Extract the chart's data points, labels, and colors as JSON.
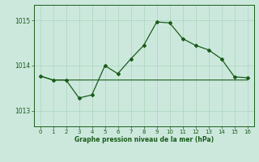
{
  "x": [
    0,
    1,
    2,
    3,
    4,
    5,
    6,
    7,
    8,
    9,
    10,
    11,
    12,
    13,
    14,
    15,
    16
  ],
  "y": [
    1013.77,
    1013.68,
    1013.68,
    1013.28,
    1013.35,
    1014.0,
    1013.82,
    1014.15,
    1014.45,
    1014.97,
    1014.95,
    1014.6,
    1014.45,
    1014.35,
    1014.15,
    1013.75,
    1013.73
  ],
  "y_baseline": [
    1013.77,
    1013.68,
    1013.68,
    1013.68,
    1013.68,
    1013.68,
    1013.68,
    1013.68,
    1013.68,
    1013.68,
    1013.68,
    1013.68,
    1013.68,
    1013.68,
    1013.68,
    1013.68,
    1013.68
  ],
  "line_color": "#1a5c1a",
  "bg_color": "#cce8dd",
  "grid_color": "#aad4bb",
  "xlabel": "Graphe pression niveau de la mer (hPa)",
  "yticks": [
    1013,
    1014,
    1015
  ],
  "xticks": [
    0,
    1,
    2,
    3,
    4,
    5,
    6,
    7,
    8,
    9,
    10,
    11,
    12,
    13,
    14,
    15,
    16
  ],
  "ylim": [
    1012.65,
    1015.35
  ],
  "xlim": [
    -0.5,
    16.5
  ]
}
